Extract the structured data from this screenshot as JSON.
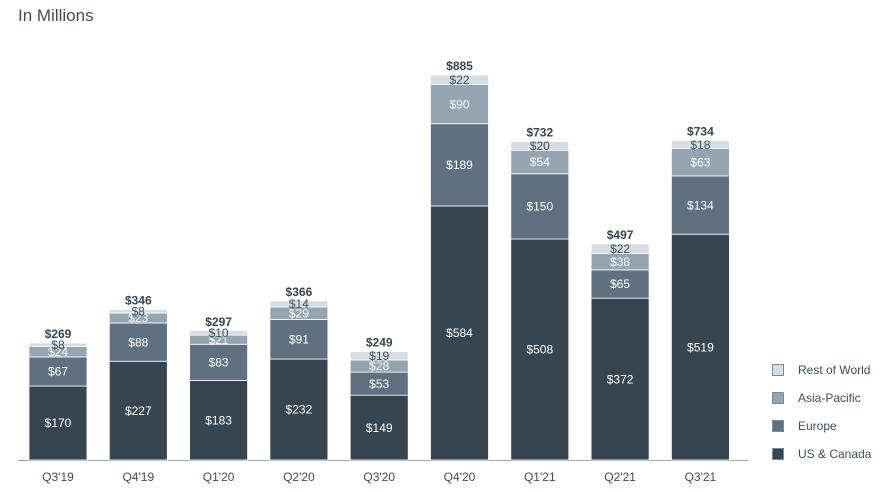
{
  "unit_label": "In Millions",
  "chart_data": {
    "type": "bar",
    "stacked": true,
    "title": "",
    "xlabel": "",
    "ylabel": "In Millions",
    "ylim": [
      0,
      900
    ],
    "grid": false,
    "legend_position": "bottom-right",
    "categories": [
      "Q3'19",
      "Q4'19",
      "Q1'20",
      "Q2'20",
      "Q3'20",
      "Q4'20",
      "Q1'21",
      "Q2'21",
      "Q3'21"
    ],
    "totals": [
      "$269",
      "$346",
      "$297",
      "$366",
      "$249",
      "$885",
      "$732",
      "$497",
      "$734"
    ],
    "series": [
      {
        "name": "US & Canada",
        "color": "#36454f",
        "label_color": "#ffffff",
        "values": [
          170,
          227,
          183,
          232,
          149,
          584,
          508,
          372,
          519
        ],
        "labels": [
          "$170",
          "$227",
          "$183",
          "$232",
          "$149",
          "$584",
          "$508",
          "$372",
          "$519"
        ]
      },
      {
        "name": "Europe",
        "color": "#5f7180",
        "label_color": "#ffffff",
        "values": [
          67,
          88,
          83,
          91,
          53,
          189,
          150,
          65,
          134
        ],
        "labels": [
          "$67",
          "$88",
          "$83",
          "$91",
          "$53",
          "$189",
          "$150",
          "$65",
          "$134"
        ]
      },
      {
        "name": "Asia-Pacific",
        "color": "#94a5b1",
        "label_color": "#ffffff",
        "values": [
          24,
          23,
          21,
          29,
          28,
          90,
          54,
          38,
          63
        ],
        "labels": [
          "$24",
          "$23",
          "$21",
          "$29",
          "$28",
          "$90",
          "$54",
          "$38",
          "$63"
        ]
      },
      {
        "name": "Rest of World",
        "color": "#d5dde2",
        "label_color": "#3d4f5c",
        "values": [
          8,
          8,
          10,
          14,
          19,
          22,
          20,
          22,
          18
        ],
        "labels": [
          "$8",
          "$8",
          "$10",
          "$14",
          "$19",
          "$22",
          "$20",
          "$22",
          "$18"
        ]
      }
    ]
  }
}
